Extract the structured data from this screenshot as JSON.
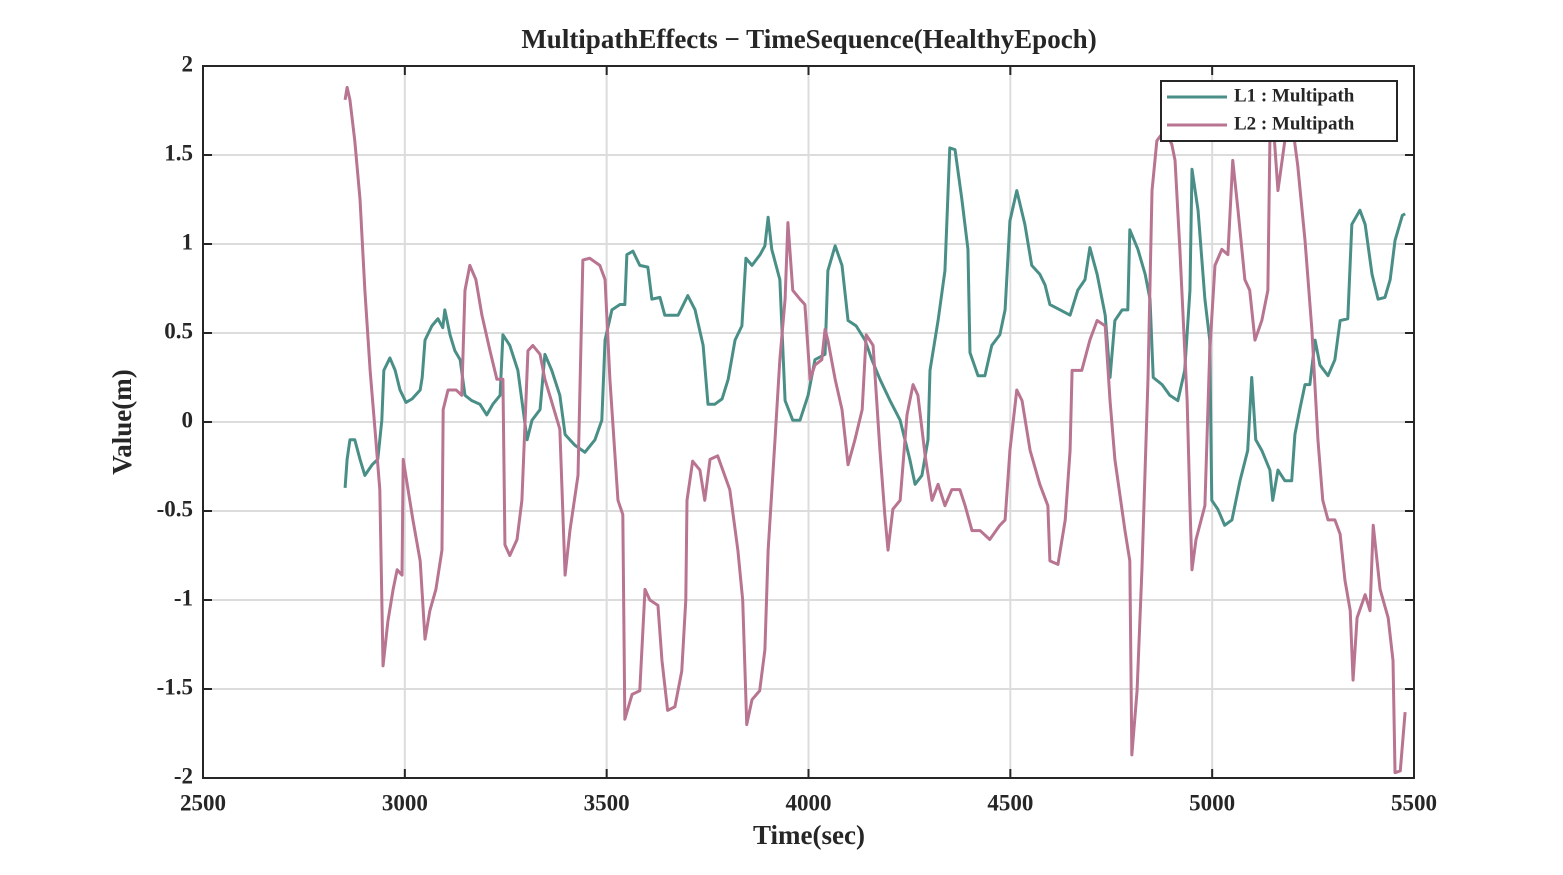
{
  "chart_data": {
    "type": "line",
    "title": "MultipathEffects − TimeSequence(HealthyEpoch)",
    "x_label": "Time(sec)",
    "y_label": "Value(m)",
    "xlim": [
      2500,
      5500
    ],
    "xticks": [
      2500,
      3000,
      3500,
      4000,
      4500,
      5000,
      5500
    ],
    "ylim": [
      -2,
      2
    ],
    "yticks": [
      -2,
      -1.5,
      -1,
      -0.5,
      0,
      0.5,
      1,
      1.5,
      2
    ],
    "grid": true,
    "legend": "upper right",
    "series": [
      {
        "name": "L1 : Multipath",
        "color": "#4a8f87",
        "x": [
          2852,
          2857,
          2864,
          2876,
          2889,
          2901,
          2919,
          2933,
          2943,
          2948,
          2963,
          2976,
          2988,
          3003,
          3018,
          3038,
          3043,
          3050,
          3067,
          3082,
          3094,
          3099,
          3112,
          3124,
          3137,
          3149,
          3166,
          3186,
          3203,
          3218,
          3236,
          3243,
          3260,
          3280,
          3303,
          3315,
          3335,
          3347,
          3364,
          3384,
          3397,
          3421,
          3446,
          3471,
          3488,
          3496,
          3513,
          3533,
          3545,
          3550,
          3565,
          3582,
          3602,
          3612,
          3632,
          3644,
          3677,
          3701,
          3719,
          3739,
          3751,
          3768,
          3786,
          3801,
          3818,
          3835,
          3845,
          3860,
          3880,
          3892,
          3900,
          3909,
          3929,
          3942,
          3961,
          3979,
          3999,
          4016,
          4041,
          4048,
          4066,
          4083,
          4098,
          4118,
          4140,
          4157,
          4177,
          4202,
          4227,
          4251,
          4264,
          4281,
          4296,
          4301,
          4321,
          4338,
          4350,
          4363,
          4380,
          4395,
          4400,
          4420,
          4437,
          4454,
          4474,
          4487,
          4499,
          4516,
          4536,
          4553,
          4573,
          4586,
          4598,
          4623,
          4648,
          4667,
          4685,
          4697,
          4715,
          4735,
          4747,
          4759,
          4777,
          4791,
          4796,
          4816,
          4834,
          4846,
          4854,
          4876,
          4895,
          4915,
          4932,
          4945,
          4950,
          4965,
          4982,
          4994,
          4999,
          5014,
          5031,
          5049,
          5069,
          5088,
          5098,
          5108,
          5123,
          5143,
          5150,
          5163,
          5180,
          5197,
          5205,
          5217,
          5230,
          5242,
          5255,
          5267,
          5287,
          5304,
          5317,
          5336,
          5346,
          5366,
          5379,
          5396,
          5411,
          5428,
          5441,
          5453,
          5471,
          5478
        ],
        "values": [
          -0.37,
          -0.21,
          -0.1,
          -0.1,
          -0.21,
          -0.3,
          -0.24,
          -0.21,
          0.01,
          0.29,
          0.36,
          0.29,
          0.18,
          0.11,
          0.13,
          0.18,
          0.25,
          0.46,
          0.54,
          0.58,
          0.53,
          0.63,
          0.49,
          0.4,
          0.35,
          0.15,
          0.12,
          0.1,
          0.04,
          0.1,
          0.15,
          0.49,
          0.43,
          0.29,
          -0.1,
          0.01,
          0.07,
          0.38,
          0.29,
          0.15,
          -0.07,
          -0.13,
          -0.17,
          -0.1,
          0.01,
          0.46,
          0.63,
          0.66,
          0.66,
          0.94,
          0.96,
          0.88,
          0.87,
          0.69,
          0.7,
          0.6,
          0.6,
          0.71,
          0.63,
          0.43,
          0.1,
          0.1,
          0.13,
          0.24,
          0.46,
          0.54,
          0.92,
          0.88,
          0.94,
          0.99,
          1.15,
          0.97,
          0.8,
          0.12,
          0.01,
          0.01,
          0.15,
          0.35,
          0.38,
          0.85,
          0.99,
          0.88,
          0.57,
          0.54,
          0.46,
          0.35,
          0.24,
          0.12,
          0.01,
          -0.21,
          -0.35,
          -0.3,
          -0.1,
          0.29,
          0.57,
          0.85,
          1.54,
          1.53,
          1.25,
          0.97,
          0.39,
          0.26,
          0.26,
          0.43,
          0.49,
          0.63,
          1.13,
          1.3,
          1.11,
          0.88,
          0.83,
          0.77,
          0.66,
          0.63,
          0.6,
          0.74,
          0.8,
          0.98,
          0.83,
          0.6,
          0.25,
          0.57,
          0.63,
          0.63,
          1.08,
          0.97,
          0.83,
          0.69,
          0.25,
          0.21,
          0.15,
          0.12,
          0.29,
          0.74,
          1.42,
          1.19,
          0.69,
          0.46,
          -0.44,
          -0.49,
          -0.58,
          -0.55,
          -0.33,
          -0.16,
          0.25,
          -0.1,
          -0.16,
          -0.27,
          -0.44,
          -0.27,
          -0.33,
          -0.33,
          -0.07,
          0.07,
          0.21,
          0.21,
          0.46,
          0.32,
          0.26,
          0.35,
          0.57,
          0.58,
          1.11,
          1.19,
          1.11,
          0.83,
          0.69,
          0.7,
          0.8,
          1.02,
          1.16,
          1.17
        ]
      },
      {
        "name": "L2 : Multipath",
        "color": "#b87490",
        "x": [
          2852,
          2857,
          2864,
          2876,
          2889,
          2901,
          2914,
          2926,
          2938,
          2946,
          2958,
          2971,
          2981,
          2993,
          2996,
          3008,
          3020,
          3038,
          3050,
          3062,
          3077,
          3092,
          3095,
          3107,
          3127,
          3141,
          3149,
          3161,
          3176,
          3191,
          3211,
          3228,
          3243,
          3248,
          3260,
          3278,
          3290,
          3305,
          3317,
          3335,
          3347,
          3359,
          3384,
          3397,
          3409,
          3429,
          3441,
          3458,
          3483,
          3496,
          3508,
          3528,
          3540,
          3545,
          3563,
          3582,
          3595,
          3607,
          3627,
          3637,
          3651,
          3669,
          3686,
          3696,
          3699,
          3713,
          3731,
          3743,
          3756,
          3775,
          3805,
          3825,
          3837,
          3847,
          3860,
          3879,
          3892,
          3900,
          3917,
          3929,
          3942,
          3949,
          3961,
          3979,
          3991,
          4004,
          4016,
          4033,
          4041,
          4048,
          4066,
          4083,
          4098,
          4115,
          4133,
          4143,
          4160,
          4177,
          4189,
          4197,
          4209,
          4227,
          4244,
          4259,
          4271,
          4289,
          4306,
          4321,
          4338,
          4355,
          4375,
          4388,
          4405,
          4425,
          4449,
          4474,
          4487,
          4499,
          4516,
          4529,
          4549,
          4573,
          4593,
          4598,
          4618,
          4636,
          4648,
          4653,
          4677,
          4697,
          4715,
          4735,
          4747,
          4759,
          4784,
          4796,
          4801,
          4814,
          4826,
          4841,
          4851,
          4863,
          4883,
          4900,
          4908,
          4920,
          4938,
          4945,
          4950,
          4960,
          4982,
          4994,
          5007,
          5024,
          5039,
          5051,
          5064,
          5081,
          5093,
          5106,
          5123,
          5138,
          5143,
          5150,
          5163,
          5180,
          5197,
          5212,
          5230,
          5247,
          5262,
          5274,
          5287,
          5304,
          5317,
          5329,
          5342,
          5349,
          5359,
          5379,
          5391,
          5399,
          5416,
          5436,
          5448,
          5453,
          5466,
          5478
        ],
        "values": [
          1.81,
          1.88,
          1.81,
          1.58,
          1.25,
          0.74,
          0.29,
          -0.04,
          -0.38,
          -1.37,
          -1.12,
          -0.94,
          -0.83,
          -0.86,
          -0.21,
          -0.38,
          -0.55,
          -0.78,
          -1.22,
          -1.06,
          -0.94,
          -0.72,
          0.07,
          0.18,
          0.18,
          0.15,
          0.74,
          0.88,
          0.8,
          0.6,
          0.4,
          0.24,
          0.24,
          -0.69,
          -0.75,
          -0.66,
          -0.44,
          0.4,
          0.43,
          0.38,
          0.24,
          0.15,
          -0.04,
          -0.86,
          -0.61,
          -0.3,
          0.91,
          0.92,
          0.88,
          0.8,
          0.24,
          -0.44,
          -0.52,
          -1.67,
          -1.53,
          -1.51,
          -0.94,
          -1.0,
          -1.03,
          -1.34,
          -1.62,
          -1.6,
          -1.4,
          -1.0,
          -0.44,
          -0.22,
          -0.27,
          -0.44,
          -0.21,
          -0.19,
          -0.38,
          -0.72,
          -1.0,
          -1.7,
          -1.56,
          -1.51,
          -1.28,
          -0.72,
          -0.1,
          0.35,
          0.69,
          1.12,
          0.74,
          0.69,
          0.66,
          0.24,
          0.32,
          0.35,
          0.52,
          0.46,
          0.24,
          0.07,
          -0.24,
          -0.1,
          0.07,
          0.49,
          0.43,
          -0.16,
          -0.52,
          -0.72,
          -0.49,
          -0.44,
          0.04,
          0.21,
          0.15,
          -0.19,
          -0.44,
          -0.35,
          -0.47,
          -0.38,
          -0.38,
          -0.47,
          -0.61,
          -0.61,
          -0.66,
          -0.58,
          -0.55,
          -0.16,
          0.18,
          0.12,
          -0.16,
          -0.35,
          -0.47,
          -0.78,
          -0.8,
          -0.55,
          -0.16,
          0.29,
          0.29,
          0.46,
          0.57,
          0.54,
          0.12,
          -0.21,
          -0.61,
          -0.78,
          -1.87,
          -1.51,
          -0.83,
          0.24,
          1.3,
          1.58,
          1.64,
          1.56,
          1.47,
          0.97,
          0.12,
          -0.47,
          -0.83,
          -0.66,
          -0.47,
          0.4,
          0.88,
          0.97,
          0.94,
          1.47,
          1.19,
          0.8,
          0.74,
          0.46,
          0.57,
          0.74,
          1.58,
          1.72,
          1.3,
          1.58,
          1.7,
          1.44,
          1.02,
          0.52,
          -0.1,
          -0.44,
          -0.55,
          -0.55,
          -0.63,
          -0.89,
          -1.06,
          -1.45,
          -1.1,
          -0.97,
          -1.06,
          -0.58,
          -0.94,
          -1.1,
          -1.34,
          -1.97,
          -1.96,
          -1.63
        ]
      }
    ]
  }
}
